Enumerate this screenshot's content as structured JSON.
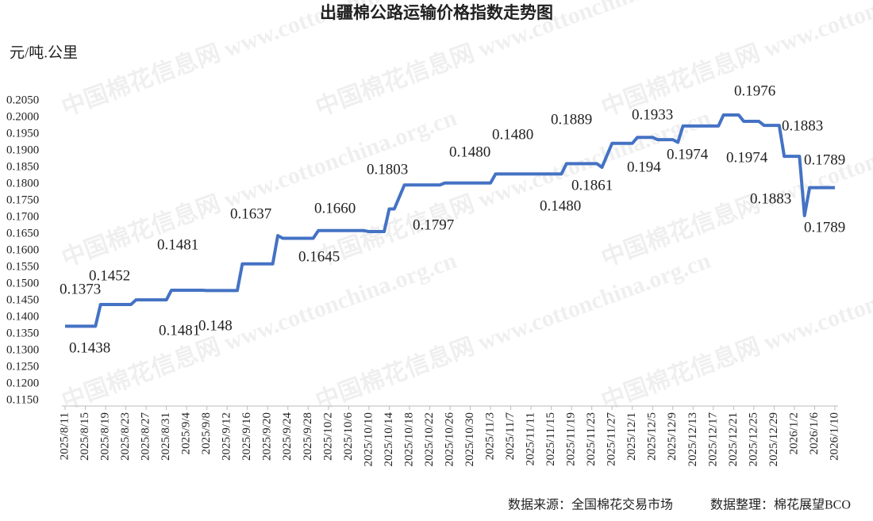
{
  "chart_data": {
    "type": "line",
    "title": "出疆棉公路运输价格指数走势图",
    "y_label": "元/吨.公里",
    "source": "数据来源：全国棉花交易市场",
    "compiler": "数据整理：棉花展望BCO",
    "watermark": "中国棉花信息网 www.cottonchina.org.cn",
    "x": [
      "2025/8/11",
      "2025/8/17",
      "2025/8/18",
      "2025/8/24",
      "2025/8/25",
      "2025/8/31",
      "2025/9/1",
      "2025/9/7",
      "2025/9/8",
      "2025/9/14",
      "2025/9/15",
      "2025/9/21",
      "2025/9/22",
      "2025/9/23",
      "2025/9/29",
      "2025/9/30",
      "2025/10/9",
      "2025/10/10",
      "2025/10/13",
      "2025/10/14",
      "2025/10/15",
      "2025/10/17",
      "2025/10/24",
      "2025/10/25",
      "2025/11/3",
      "2025/11/4",
      "2025/11/17",
      "2025/11/18",
      "2025/11/24",
      "2025/11/25",
      "2025/11/27",
      "2025/12/1",
      "2025/12/2",
      "2025/12/5",
      "2025/12/6",
      "2025/12/9",
      "2025/12/10",
      "2025/12/11",
      "2025/12/18",
      "2025/12/19",
      "2025/12/22",
      "2025/12/23",
      "2025/12/26",
      "2025/12/27",
      "2025/12/30",
      "2025/12/31",
      "2026/1/3",
      "2026/1/4",
      "2026/1/5",
      "2026/1/10"
    ],
    "series": [
      {
        "name": "出疆棉公路运输价格指数",
        "color": "#4472c4",
        "values": [
          0.1373,
          0.1373,
          0.1438,
          0.1438,
          0.1452,
          0.1452,
          0.1481,
          0.1481,
          0.148,
          0.148,
          0.156,
          0.156,
          0.1645,
          0.1637,
          0.1637,
          0.166,
          0.166,
          0.1657,
          0.1657,
          0.1725,
          0.1725,
          0.1797,
          0.1797,
          0.1803,
          0.1803,
          0.183,
          0.183,
          0.1861,
          0.1861,
          0.185,
          0.1922,
          0.1922,
          0.194,
          0.194,
          0.1933,
          0.1933,
          0.1925,
          0.1974,
          0.1974,
          0.2007,
          0.2007,
          0.1988,
          0.1988,
          0.1976,
          0.1976,
          0.1883,
          0.1883,
          0.1705,
          0.1789,
          0.1789
        ]
      }
    ],
    "annotations": [
      "0.1373",
      "0.1438",
      "0.1452",
      "0.1481",
      "0.1481",
      "0.148",
      "0.1637",
      "0.1645",
      "0.1660",
      "0.1803",
      "0.1797",
      "0.1480",
      "0.1480",
      "0.1480",
      "0.1889",
      "0.1861",
      "0.1933",
      "0.194",
      "0.1974",
      "0.1976",
      "0.1974",
      "0.1883",
      "0.1883",
      "0.1789",
      "0.1789"
    ],
    "xlim": [
      "2025/8/11",
      "2026/1/10"
    ],
    "xticks": [
      "2025/8/11",
      "2025/8/15",
      "2025/8/19",
      "2025/8/23",
      "2025/8/27",
      "2025/8/31",
      "2025/9/4",
      "2025/9/8",
      "2025/9/12",
      "2025/9/16",
      "2025/9/20",
      "2025/9/24",
      "2025/9/28",
      "2025/10/2",
      "2025/10/6",
      "2025/10/10",
      "2025/10/14",
      "2025/10/18",
      "2025/10/22",
      "2025/10/26",
      "2025/10/30",
      "2025/11/3",
      "2025/11/7",
      "2025/11/11",
      "2025/11/15",
      "2025/11/19",
      "2025/11/23",
      "2025/11/27",
      "2025/12/1",
      "2025/12/5",
      "2025/12/9",
      "2025/12/13",
      "2025/12/17",
      "2025/12/21",
      "2025/12/25",
      "2025/12/29",
      "2026/1/2",
      "2026/1/6",
      "2026/1/10"
    ],
    "ylim": [
      0.115,
      0.205
    ],
    "yticks": [
      {
        "value": 0.115,
        "label": "0.1150"
      },
      {
        "value": 0.12,
        "label": "0.1200"
      },
      {
        "value": 0.125,
        "label": "0.1250"
      },
      {
        "value": 0.13,
        "label": "0.1300"
      },
      {
        "value": 0.135,
        "label": "0.1350"
      },
      {
        "value": 0.14,
        "label": "0.1400"
      },
      {
        "value": 0.145,
        "label": "0.1450"
      },
      {
        "value": 0.15,
        "label": "0.1500"
      },
      {
        "value": 0.155,
        "label": "0.1550"
      },
      {
        "value": 0.16,
        "label": "0.1600"
      },
      {
        "value": 0.165,
        "label": "0.1650"
      },
      {
        "value": 0.17,
        "label": "0.1700"
      },
      {
        "value": 0.175,
        "label": "0.1750"
      },
      {
        "value": 0.18,
        "label": "0.1800"
      },
      {
        "value": 0.185,
        "label": "0.1850"
      },
      {
        "value": 0.19,
        "label": "0.1900"
      },
      {
        "value": 0.195,
        "label": "0.1950"
      },
      {
        "value": 0.2,
        "label": "0.2000"
      },
      {
        "value": 0.205,
        "label": "0.2050"
      }
    ],
    "grid": false
  }
}
